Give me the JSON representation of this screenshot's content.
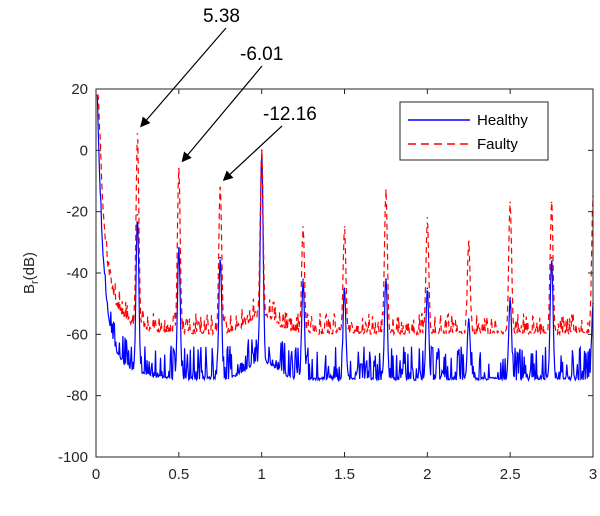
{
  "chart_data": {
    "type": "line",
    "title": "",
    "xlabel": "",
    "ylabel": {
      "main": "B",
      "sub": "r",
      "rest": "(dB)"
    },
    "xlim": [
      0,
      3
    ],
    "ylim": [
      -100,
      20
    ],
    "xticks": [
      "0",
      "0.5",
      "1",
      "1.5",
      "2",
      "2.5",
      "3"
    ],
    "yticks": [
      "20",
      "0",
      "-20",
      "-40",
      "-60",
      "-80",
      "-100"
    ],
    "grid": false,
    "legend_position": "top-right",
    "series": [
      {
        "name": "Healthy",
        "color": "#0000ff",
        "style": "solid",
        "peaks": [
          {
            "x": 0.25,
            "y": -21
          },
          {
            "x": 0.5,
            "y": -32
          },
          {
            "x": 0.75,
            "y": -35
          },
          {
            "x": 1.0,
            "y": 0
          },
          {
            "x": 1.25,
            "y": -42
          },
          {
            "x": 1.5,
            "y": -45
          },
          {
            "x": 1.75,
            "y": -42
          },
          {
            "x": 2.0,
            "y": -45
          },
          {
            "x": 2.25,
            "y": -55
          },
          {
            "x": 2.5,
            "y": -48
          },
          {
            "x": 2.75,
            "y": -35
          },
          {
            "x": 3.0,
            "y": -50
          }
        ],
        "baseline": -75
      },
      {
        "name": "Faulty",
        "color": "#ff0000",
        "style": "dashed",
        "peaks": [
          {
            "x": 0.25,
            "y": 5.38
          },
          {
            "x": 0.5,
            "y": -6.01
          },
          {
            "x": 0.75,
            "y": -12.16
          },
          {
            "x": 1.0,
            "y": 0
          },
          {
            "x": 1.25,
            "y": -25
          },
          {
            "x": 1.5,
            "y": -25
          },
          {
            "x": 1.75,
            "y": -13
          },
          {
            "x": 2.0,
            "y": -22
          },
          {
            "x": 2.25,
            "y": -30
          },
          {
            "x": 2.5,
            "y": -17
          },
          {
            "x": 2.75,
            "y": -17
          },
          {
            "x": 3.0,
            "y": -15
          }
        ],
        "baseline": -60
      }
    ],
    "annotations": [
      {
        "text": "5.38",
        "x": 0.25,
        "y": 5.38
      },
      {
        "text": "-6.01",
        "x": 0.5,
        "y": -6.01
      },
      {
        "text": "-12.16",
        "x": 0.75,
        "y": -12.16
      }
    ]
  }
}
